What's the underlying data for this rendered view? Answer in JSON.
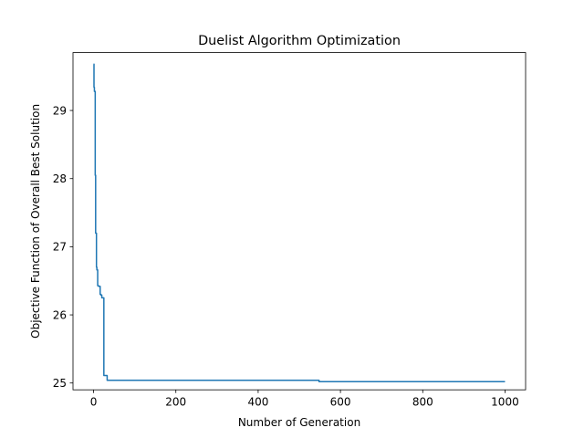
{
  "chart_data": {
    "type": "line",
    "title": "Duelist Algorithm Optimization",
    "xlabel": "Number of Generation",
    "ylabel": "Objective Function of Overall Best Solution",
    "xlim": [
      -50,
      1050
    ],
    "ylim": [
      24.9,
      29.85
    ],
    "grid": false,
    "legend": "none",
    "x_ticks": [
      0,
      200,
      400,
      600,
      800,
      1000
    ],
    "y_ticks": [
      25,
      26,
      27,
      28,
      29
    ],
    "line_color": "#1f77b4",
    "series": [
      {
        "x": [
          0,
          1,
          1,
          2,
          2,
          4,
          4,
          5,
          5,
          7,
          7,
          8,
          8,
          10,
          10,
          12,
          12,
          16,
          16,
          18,
          18,
          20,
          20,
          25,
          25,
          33,
          33,
          548,
          548,
          1000
        ],
        "y": [
          29.68,
          29.68,
          29.34,
          29.34,
          29.28,
          29.28,
          28.05,
          28.05,
          27.2,
          27.2,
          26.7,
          26.7,
          26.66,
          26.66,
          26.43,
          26.43,
          26.42,
          26.42,
          26.3,
          26.3,
          26.29,
          26.29,
          26.25,
          26.25,
          25.11,
          25.11,
          25.04,
          25.04,
          25.02,
          25.02
        ]
      }
    ]
  }
}
